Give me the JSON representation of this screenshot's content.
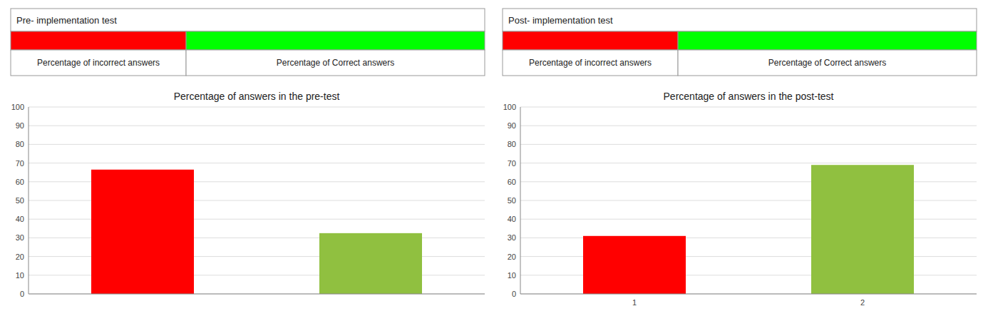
{
  "chart_data": [
    {
      "type": "table",
      "title": "Pre- implementation test",
      "categories": [
        "Percentage of incorrect answers",
        "Percentage of Correct answers"
      ],
      "colors": [
        "#ff0000",
        "#00ff00"
      ]
    },
    {
      "type": "bar",
      "title": "Percentage of answers in the pre-test",
      "categories": [
        null,
        null
      ],
      "values": [
        66.5,
        32.5
      ],
      "colors": [
        "#ff0000",
        "#90c040"
      ],
      "ylim": [
        0,
        100
      ],
      "yticks": [
        0,
        10,
        20,
        30,
        40,
        50,
        60,
        70,
        80,
        90,
        100
      ],
      "grid": true,
      "tick_labels": "y"
    },
    {
      "type": "table",
      "title": "Post- implementation test",
      "categories": [
        "Percentage of incorrect answers",
        "Percentage of Correct answers"
      ],
      "colors": [
        "#ff0000",
        "#00ff00"
      ]
    },
    {
      "type": "bar",
      "title": "Percentage of answers in the post-test",
      "categories": [
        "1",
        "2"
      ],
      "values": [
        31.0,
        69.0
      ],
      "colors": [
        "#ff0000",
        "#90c040"
      ],
      "ylim": [
        0,
        100
      ],
      "yticks": [
        0,
        10,
        20,
        30,
        40,
        50,
        60,
        70,
        80,
        90,
        100
      ],
      "grid": true
    }
  ]
}
